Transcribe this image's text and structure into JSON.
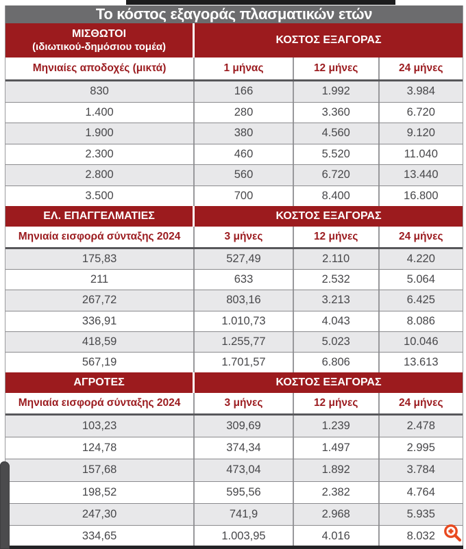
{
  "chart_data": {
    "type": "table",
    "title": "Το κόστος εξαγοράς πλασματικών ετών",
    "tables": [
      {
        "group_label": "ΜΙΣΘΩΤΟΙ",
        "group_sublabel": "(ιδιωτικού-δημόσιου τομέα)",
        "cost_label": "ΚΟΣΤΟΣ ΕΞΑΓΟΡΑΣ",
        "columns": [
          "Μηνιαίες αποδοχές (μικτά)",
          "1 μήνας",
          "12 μήνες",
          "24 μήνες"
        ],
        "rows": [
          [
            "830",
            "166",
            "1.992",
            "3.984"
          ],
          [
            "1.400",
            "280",
            "3.360",
            "6.720"
          ],
          [
            "1.900",
            "380",
            "4.560",
            "9.120"
          ],
          [
            "2.300",
            "460",
            "5.520",
            "11.040"
          ],
          [
            "2.800",
            "560",
            "6.720",
            "13.440"
          ],
          [
            "3.500",
            "700",
            "8.400",
            "16.800"
          ]
        ]
      },
      {
        "group_label": "ΕΛ. ΕΠΑΓΓΕΛΜΑΤΙΕΣ",
        "group_sublabel": "",
        "cost_label": "ΚΟΣΤΟΣ ΕΞΑΓΟΡΑΣ",
        "columns": [
          "Μηνιαία εισφορά σύνταξης 2024",
          "3 μήνες",
          "12 μήνες",
          "24 μήνες"
        ],
        "rows": [
          [
            "175,83",
            "527,49",
            "2.110",
            "4.220"
          ],
          [
            "211",
            "633",
            "2.532",
            "5.064"
          ],
          [
            "267,72",
            "803,16",
            "3.213",
            "6.425"
          ],
          [
            "336,91",
            "1.010,73",
            "4.043",
            "8.086"
          ],
          [
            "418,59",
            "1.255,77",
            "5.023",
            "10.046"
          ],
          [
            "567,19",
            "1.701,57",
            "6.806",
            "13.613"
          ]
        ]
      },
      {
        "group_label": "ΑΓΡΟΤΕΣ",
        "group_sublabel": "",
        "cost_label": "ΚΟΣΤΟΣ ΕΞΑΓΟΡΑΣ",
        "columns": [
          "Μηνιαία εισφορά σύνταξης 2024",
          "3 μήνες",
          "12 μήνες",
          "24 μήνες"
        ],
        "rows": [
          [
            "103,23",
            "309,69",
            "1.239",
            "2.478"
          ],
          [
            "124,78",
            "374,34",
            "1.497",
            "2.995"
          ],
          [
            "157,68",
            "473,04",
            "1.892",
            "3.784"
          ],
          [
            "198,52",
            "595,56",
            "2.382",
            "4.764"
          ],
          [
            "247,30",
            "741,9",
            "2.968",
            "5.935"
          ],
          [
            "334,65",
            "1.003,95",
            "4.016",
            "8.032"
          ]
        ]
      }
    ],
    "layout": {
      "grid": "off",
      "header_style": "dark-red merged cost header per section",
      "row_striping": "grey/white alternating"
    }
  },
  "icons": {
    "zoom_in": "magnifier-with-plus"
  },
  "colors": {
    "title_bar_grey": "#6c6c6e",
    "section_header_red": "#9c1b1e",
    "subheader_text_red": "#9b1b1f",
    "row_alt_grey": "#e8e8ea",
    "data_text": "#47474a",
    "zoom_icon_orange": "#e8491f",
    "crop_strip_dark": "#1c1c1d"
  }
}
